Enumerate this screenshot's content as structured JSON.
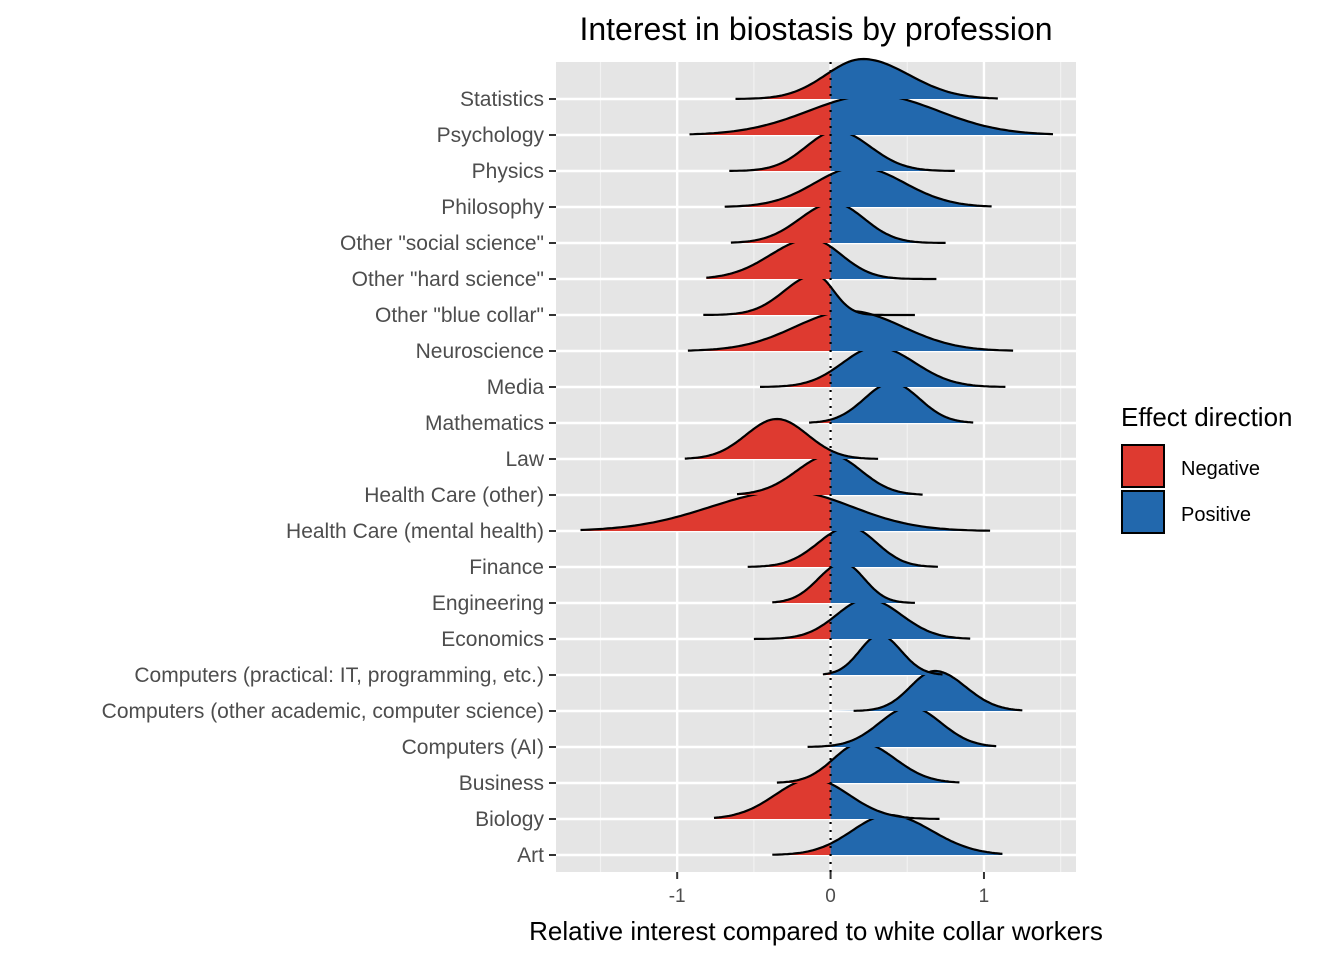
{
  "chart_data": {
    "type": "ridgeline",
    "title": "Interest in biostasis by profession",
    "xlabel": "Relative interest compared to white collar workers",
    "ylabel": "",
    "xlim": [
      -1.79,
      1.6
    ],
    "x_ticks": [
      -1,
      0,
      1
    ],
    "x_tick_labels": [
      "-1",
      "0",
      "1"
    ],
    "reference_line_x": 0,
    "grid": true,
    "legend": {
      "title": "Effect direction",
      "position": "right",
      "entries": [
        {
          "label": "Negative",
          "color": "#de3a30"
        },
        {
          "label": "Positive",
          "color": "#2268ad"
        }
      ]
    },
    "fill_rule": "red where x < 0, blue where x > 0",
    "categories": [
      "Statistics",
      "Psychology",
      "Physics",
      "Philosophy",
      "Other \"social science\"",
      "Other \"hard science\"",
      "Other \"blue collar\"",
      "Neuroscience",
      "Media",
      "Mathematics",
      "Law",
      "Health Care (other)",
      "Health Care (mental health)",
      "Finance",
      "Engineering",
      "Economics",
      "Computers (practical: IT, programming, etc.)",
      "Computers (other academic, computer science)",
      "Computers (AI)",
      "Business",
      "Biology",
      "Art"
    ],
    "series": [
      {
        "name": "Statistics",
        "peak": 0.21,
        "min": -0.62,
        "max": 1.09,
        "spread_left": 0.24,
        "spread_right": 0.3
      },
      {
        "name": "Psychology",
        "peak": 0.28,
        "min": -0.92,
        "max": 1.45,
        "spread_left": 0.42,
        "spread_right": 0.42
      },
      {
        "name": "Physics",
        "peak": 0.04,
        "min": -0.66,
        "max": 0.81,
        "spread_left": 0.2,
        "spread_right": 0.22
      },
      {
        "name": "Philosophy",
        "peak": 0.18,
        "min": -0.69,
        "max": 1.05,
        "spread_left": 0.28,
        "spread_right": 0.3
      },
      {
        "name": "Other \"social science\"",
        "peak": 0.02,
        "min": -0.65,
        "max": 0.75,
        "spread_left": 0.22,
        "spread_right": 0.2
      },
      {
        "name": "Other \"hard science\"",
        "peak": -0.13,
        "min": -0.81,
        "max": 0.69,
        "spread_left": 0.26,
        "spread_right": 0.2
      },
      {
        "name": "Other \"blue collar\"",
        "peak": -0.1,
        "min": -0.83,
        "max": 0.55,
        "spread_left": 0.2,
        "spread_right": 0.12
      },
      {
        "name": "Neuroscience",
        "peak": 0.12,
        "min": -0.93,
        "max": 1.19,
        "spread_left": 0.35,
        "spread_right": 0.35
      },
      {
        "name": "Media",
        "peak": 0.3,
        "min": -0.46,
        "max": 1.14,
        "spread_left": 0.22,
        "spread_right": 0.25
      },
      {
        "name": "Mathematics",
        "peak": 0.4,
        "min": -0.14,
        "max": 0.93,
        "spread_left": 0.18,
        "spread_right": 0.18
      },
      {
        "name": "Law",
        "peak": -0.35,
        "min": -0.95,
        "max": 0.31,
        "spread_left": 0.2,
        "spread_right": 0.2
      },
      {
        "name": "Health Care (other)",
        "peak": 0.0,
        "min": -0.61,
        "max": 0.6,
        "spread_left": 0.22,
        "spread_right": 0.2
      },
      {
        "name": "Health Care (mental health)",
        "peak": -0.28,
        "min": -1.63,
        "max": 1.04,
        "spread_left": 0.5,
        "spread_right": 0.42
      },
      {
        "name": "Finance",
        "peak": 0.12,
        "min": -0.54,
        "max": 0.7,
        "spread_left": 0.2,
        "spread_right": 0.18
      },
      {
        "name": "Engineering",
        "peak": 0.08,
        "min": -0.38,
        "max": 0.55,
        "spread_left": 0.16,
        "spread_right": 0.14
      },
      {
        "name": "Economics",
        "peak": 0.24,
        "min": -0.5,
        "max": 0.91,
        "spread_left": 0.2,
        "spread_right": 0.22
      },
      {
        "name": "Computers (practical: IT, programming, etc.)",
        "peak": 0.32,
        "min": -0.05,
        "max": 0.73,
        "spread_left": 0.13,
        "spread_right": 0.14
      },
      {
        "name": "Computers (other academic, computer science)",
        "peak": 0.68,
        "min": 0.15,
        "max": 1.25,
        "spread_left": 0.16,
        "spread_right": 0.2
      },
      {
        "name": "Computers (AI)",
        "peak": 0.52,
        "min": -0.15,
        "max": 1.08,
        "spread_left": 0.2,
        "spread_right": 0.2
      },
      {
        "name": "Business",
        "peak": 0.2,
        "min": -0.35,
        "max": 0.84,
        "spread_left": 0.18,
        "spread_right": 0.22
      },
      {
        "name": "Biology",
        "peak": -0.12,
        "min": -0.76,
        "max": 0.71,
        "spread_left": 0.24,
        "spread_right": 0.24
      },
      {
        "name": "Art",
        "peak": 0.38,
        "min": -0.38,
        "max": 1.12,
        "spread_left": 0.24,
        "spread_right": 0.28
      }
    ]
  }
}
